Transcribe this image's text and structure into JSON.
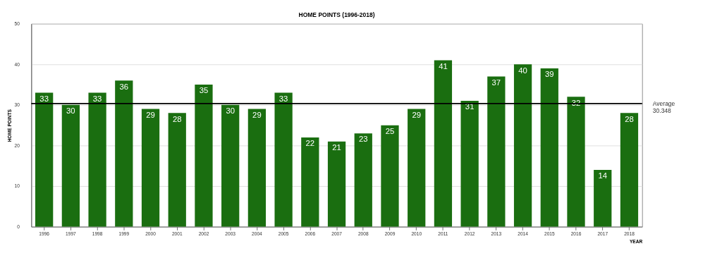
{
  "chart_data": {
    "type": "bar",
    "title": "HOME POINTS (1996-2018)",
    "xlabel": "YEAR",
    "ylabel": "HOME POINTS",
    "categories": [
      "1996",
      "1997",
      "1998",
      "1999",
      "2000",
      "2001",
      "2002",
      "2003",
      "2004",
      "2005",
      "2006",
      "2007",
      "2008",
      "2009",
      "2010",
      "2011",
      "2012",
      "2013",
      "2014",
      "2015",
      "2016",
      "2017",
      "2018"
    ],
    "values": [
      33,
      30,
      33,
      36,
      29,
      28,
      35,
      30,
      29,
      33,
      22,
      21,
      23,
      25,
      29,
      41,
      31,
      37,
      40,
      39,
      32,
      14,
      28
    ],
    "color": "#1a6e10",
    "ylim": [
      0,
      50
    ],
    "yticks": [
      0,
      10,
      20,
      30,
      40,
      50
    ],
    "ref_lines": [
      {
        "axis": "y",
        "value": 30.348,
        "label": "Average\n30.348",
        "color": "#000000"
      }
    ],
    "data_labels": true,
    "grid": "y"
  }
}
